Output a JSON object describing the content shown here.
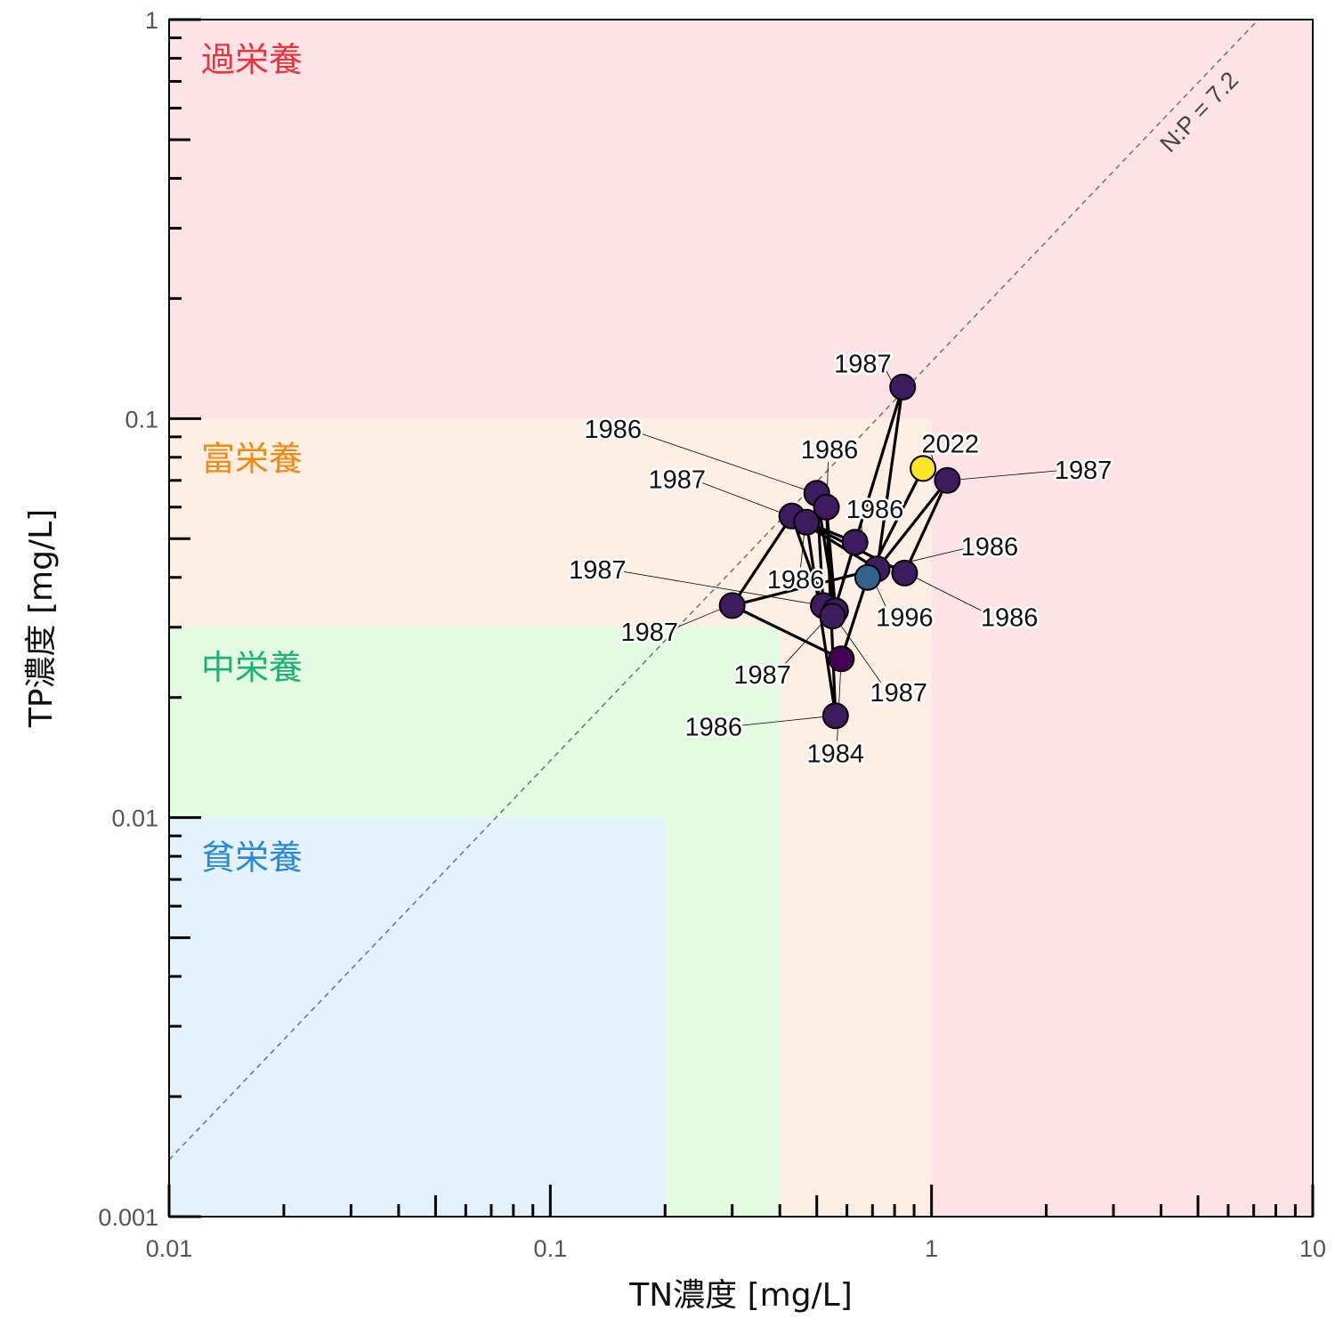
{
  "chart_data": {
    "type": "scatter",
    "title": "",
    "xlabel": "TN濃度 [mg/L]",
    "ylabel": "TP濃度 [mg/L]",
    "xscale": "log",
    "yscale": "log",
    "xlim": [
      0.01,
      10
    ],
    "ylim": [
      0.001,
      1
    ],
    "x_ticks": [
      {
        "value": 0.01,
        "label": "0.01"
      },
      {
        "value": 0.1,
        "label": "0.1"
      },
      {
        "value": 1,
        "label": "1"
      },
      {
        "value": 10,
        "label": "10"
      }
    ],
    "y_ticks": [
      {
        "value": 0.001,
        "label": "0.001"
      },
      {
        "value": 0.01,
        "label": "0.01"
      },
      {
        "value": 0.1,
        "label": "0.1"
      },
      {
        "value": 1,
        "label": "1"
      }
    ],
    "grid": false,
    "legend": "none",
    "zones": [
      {
        "name": "過栄養",
        "tn_max": 10,
        "tp_max": 1,
        "fill": "#fde3e5",
        "text_color": "#e8353d"
      },
      {
        "name": "富栄養",
        "tn_max": 1,
        "tp_max": 0.1,
        "fill": "#fdefe3",
        "text_color": "#f28a12"
      },
      {
        "name": "中栄養",
        "tn_max": 0.4,
        "tp_max": 0.03,
        "fill": "#e2fbe1",
        "text_color": "#1cb07a"
      },
      {
        "name": "貧栄養",
        "tn_max": 0.2,
        "tp_max": 0.01,
        "fill": "#e3f2fd",
        "text_color": "#2a8ad8"
      }
    ],
    "reference_line": {
      "label": "N:P = 7.2",
      "ratio": 7.2,
      "color": "#777777",
      "style": "dashed"
    },
    "colormap": "viridis",
    "points": [
      {
        "x": 0.3,
        "y": 0.034,
        "year": "1987",
        "label_x": 0.182,
        "label_y": 0.0292,
        "color": "#3d1b5e"
      },
      {
        "x": 0.43,
        "y": 0.057,
        "year": "1987",
        "label_x": 0.215,
        "label_y": 0.0705,
        "color": "#3d1b5e"
      },
      {
        "x": 0.5,
        "y": 0.065,
        "year": "1986",
        "label_x": 0.146,
        "label_y": 0.0942,
        "color": "#3d1b5e"
      },
      {
        "x": 0.53,
        "y": 0.06,
        "year": "1986",
        "label_x": 0.54,
        "label_y": 0.0836,
        "color": "#3d1b5e"
      },
      {
        "x": 0.47,
        "y": 0.055,
        "year": "1986",
        "label_x": 0.44,
        "label_y": 0.0395,
        "color": "#3d1b5e"
      },
      {
        "x": 0.52,
        "y": 0.034,
        "year": "1987",
        "label_x": 0.133,
        "label_y": 0.0418,
        "color": "#3d1b5e"
      },
      {
        "x": 0.56,
        "y": 0.033,
        "year": "1987",
        "label_x": 0.36,
        "label_y": 0.0228,
        "color": "#3d1b5e"
      },
      {
        "x": 0.55,
        "y": 0.032,
        "year": "1987",
        "label_x": 0.82,
        "label_y": 0.0206,
        "color": "#3d1b5e"
      },
      {
        "x": 0.63,
        "y": 0.049,
        "year": "1986",
        "label_x": 0.71,
        "label_y": 0.0594,
        "color": "#3d1b5e"
      },
      {
        "x": 0.72,
        "y": 0.042,
        "year": "1986",
        "label_x": 1.42,
        "label_y": 0.0478,
        "color": "#3d1b5e"
      },
      {
        "x": 0.85,
        "y": 0.041,
        "year": "1986",
        "label_x": 1.6,
        "label_y": 0.0318,
        "color": "#3d1b5e"
      },
      {
        "x": 0.84,
        "y": 0.12,
        "year": "1987",
        "label_x": 0.66,
        "label_y": 0.1375,
        "color": "#3d1b5e"
      },
      {
        "x": 1.1,
        "y": 0.07,
        "year": "1987",
        "label_x": 2.5,
        "label_y": 0.0744,
        "color": "#3d1b5e"
      },
      {
        "x": 0.56,
        "y": 0.018,
        "year": "1986",
        "label_x": 0.268,
        "label_y": 0.0169,
        "color": "#3d1b5e"
      },
      {
        "x": 0.58,
        "y": 0.025,
        "year": "1984",
        "label_x": 0.56,
        "label_y": 0.0145,
        "color": "#440154"
      },
      {
        "x": 0.68,
        "y": 0.04,
        "year": "1996",
        "label_x": 0.85,
        "label_y": 0.0318,
        "color": "#33638d"
      },
      {
        "x": 0.95,
        "y": 0.075,
        "year": "2022",
        "label_x": 1.12,
        "label_y": 0.0866,
        "color": "#fde725"
      }
    ],
    "path": [
      [
        0.3,
        0.034
      ],
      [
        0.43,
        0.057
      ],
      [
        0.52,
        0.034
      ],
      [
        0.5,
        0.065
      ],
      [
        0.56,
        0.033
      ],
      [
        0.53,
        0.06
      ],
      [
        0.56,
        0.018
      ],
      [
        0.47,
        0.055
      ],
      [
        0.63,
        0.049
      ],
      [
        0.55,
        0.032
      ],
      [
        0.84,
        0.12
      ],
      [
        0.72,
        0.042
      ],
      [
        1.1,
        0.07
      ],
      [
        0.85,
        0.041
      ],
      [
        0.43,
        0.057
      ],
      [
        0.72,
        0.042
      ],
      [
        0.3,
        0.034
      ],
      [
        0.58,
        0.025
      ],
      [
        0.68,
        0.04
      ],
      [
        0.95,
        0.075
      ]
    ]
  }
}
